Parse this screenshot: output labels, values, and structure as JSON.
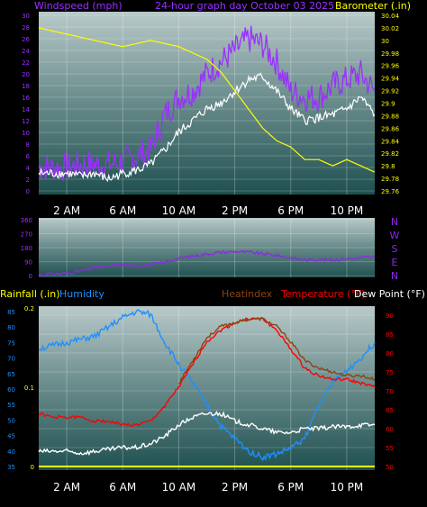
{
  "colors": {
    "background": "#000000",
    "wind_avg": "#9b30ff",
    "wind_gust": "#ffffff",
    "barometer": "#ffff00",
    "direction": "#8a2be2",
    "rain": "#ffff00",
    "humidity": "#1e90ff",
    "heatindex": "#8b4513",
    "temperature": "#ff0000",
    "dewpoint": "#ffffff"
  },
  "chart_data": [
    {
      "type": "line",
      "title_left": "Windspeed (mph)",
      "title_center": "24-hour graph day   October 03 2025",
      "title_right": "Barometer (.in)",
      "x_ticks": [
        "2 AM",
        "6 AM",
        "10 AM",
        "2 PM",
        "6 PM",
        "10 PM"
      ],
      "y_left": {
        "range": [
          0,
          30
        ],
        "ticks": [
          "0",
          "2",
          "4",
          "6",
          "8",
          "10",
          "12",
          "14",
          "16",
          "18",
          "20",
          "22",
          "24",
          "26",
          "28",
          "30"
        ]
      },
      "y_right": {
        "range": [
          29.76,
          30.04
        ],
        "ticks": [
          "29.76",
          "29.78",
          "29.8",
          "29.82",
          "29.84",
          "29.86",
          "29.88",
          "29.9",
          "29.92",
          "29.94",
          "29.96",
          "29.98",
          "30",
          "30.02",
          "30.04"
        ]
      },
      "series": [
        {
          "key": "wind_avg",
          "axis": "left",
          "x": [
            0,
            1,
            2,
            3,
            4,
            5,
            6,
            7,
            8,
            9,
            10,
            11,
            12,
            13,
            14,
            15,
            16,
            17,
            18,
            19,
            20,
            21,
            22,
            23,
            24
          ],
          "y": [
            4,
            4,
            4,
            4.5,
            4.5,
            4.5,
            5,
            6,
            7,
            13,
            16,
            17,
            20,
            22,
            24,
            26,
            25,
            22,
            17,
            16,
            16,
            18,
            19,
            20,
            17
          ]
        },
        {
          "key": "wind_gust",
          "axis": "left",
          "x": [
            0,
            1,
            2,
            3,
            4,
            5,
            6,
            7,
            8,
            9,
            10,
            11,
            12,
            13,
            14,
            15,
            16,
            17,
            18,
            19,
            20,
            21,
            22,
            23,
            24
          ],
          "y": [
            3,
            3,
            3,
            2.5,
            3,
            2,
            3,
            3.5,
            4.5,
            7,
            10,
            12,
            14,
            15,
            17,
            19,
            19.5,
            17,
            14,
            12,
            12.5,
            13,
            14,
            16,
            13
          ]
        },
        {
          "key": "barometer",
          "axis": "right",
          "x": [
            0,
            2,
            4,
            6,
            8,
            10,
            11,
            12,
            13,
            14,
            15,
            16,
            17,
            18,
            19,
            20,
            21,
            22,
            23,
            24
          ],
          "y": [
            30.02,
            30.01,
            30.0,
            29.99,
            30.0,
            29.99,
            29.98,
            29.97,
            29.95,
            29.92,
            29.89,
            29.86,
            29.84,
            29.83,
            29.81,
            29.81,
            29.8,
            29.81,
            29.8,
            29.79
          ]
        }
      ]
    },
    {
      "type": "line",
      "y_ticks": [
        "0",
        "90",
        "180",
        "270",
        "360"
      ],
      "y_range": [
        0,
        360
      ],
      "right_labels": [
        "N",
        "W",
        "S",
        "E",
        "N"
      ],
      "series": [
        {
          "key": "direction",
          "x": [
            0,
            1,
            2,
            3,
            4,
            5,
            6,
            7,
            8,
            9,
            10,
            11,
            12,
            13,
            14,
            15,
            16,
            17,
            18,
            19,
            20,
            21,
            22,
            23,
            24
          ],
          "y": [
            5,
            10,
            15,
            30,
            50,
            60,
            75,
            60,
            70,
            85,
            110,
            125,
            140,
            150,
            155,
            150,
            140,
            130,
            115,
            100,
            105,
            100,
            110,
            115,
            120
          ]
        }
      ]
    },
    {
      "type": "line",
      "label_rain": "Rainfall (.in)",
      "label_humidity": "Humidity",
      "label_heatindex": "Heatindex",
      "label_temperature": "Temperature (°F)",
      "label_dewpoint": "Dew Point (°F)",
      "x_ticks": [
        "2 AM",
        "6 AM",
        "10 AM",
        "2 PM",
        "6 PM",
        "10 PM"
      ],
      "y_rain": {
        "range": [
          0,
          0.2
        ],
        "ticks": [
          "0",
          "0.1",
          "0.2"
        ]
      },
      "y_humidity": {
        "range": [
          35,
          85
        ],
        "ticks": [
          "35",
          "40",
          "45",
          "50",
          "55",
          "60",
          "65",
          "70",
          "75",
          "80",
          "85"
        ]
      },
      "y_temp": {
        "range": [
          50,
          90
        ],
        "ticks": [
          "50",
          "55",
          "60",
          "65",
          "70",
          "75",
          "80",
          "85",
          "90"
        ]
      },
      "series": [
        {
          "key": "humidity",
          "axis": "humidity",
          "x": [
            0,
            1,
            2,
            3,
            4,
            5,
            6,
            7,
            8,
            9,
            10,
            11,
            12,
            13,
            14,
            15,
            16,
            17,
            18,
            19,
            20,
            21,
            22,
            23,
            24
          ],
          "y": [
            73,
            74,
            75,
            76,
            77,
            80,
            83,
            85,
            84,
            75,
            68,
            62,
            55,
            48,
            44,
            40,
            38,
            39,
            41,
            44,
            55,
            62,
            66,
            70,
            75
          ]
        },
        {
          "key": "temperature",
          "axis": "temp",
          "x": [
            0,
            1,
            2,
            3,
            4,
            5,
            6,
            7,
            8,
            9,
            10,
            11,
            12,
            13,
            14,
            15,
            16,
            17,
            18,
            19,
            20,
            21,
            22,
            23,
            24
          ],
          "y": [
            64,
            63,
            63,
            63,
            62,
            62,
            61,
            61,
            62,
            66,
            71,
            77,
            83,
            86,
            88,
            89,
            89,
            86,
            81,
            76,
            74,
            73,
            73,
            72,
            71
          ]
        },
        {
          "key": "heatindex",
          "axis": "temp",
          "x": [
            10,
            11,
            12,
            13,
            14,
            15,
            16,
            17,
            18,
            19,
            20,
            21,
            22,
            23,
            24
          ],
          "y": [
            72,
            78,
            84,
            87,
            88,
            89,
            89,
            87,
            83,
            78,
            76,
            75,
            74,
            74,
            73
          ]
        },
        {
          "key": "dewpoint",
          "axis": "temp",
          "x": [
            0,
            1,
            2,
            3,
            4,
            5,
            6,
            7,
            8,
            9,
            10,
            11,
            12,
            13,
            14,
            15,
            16,
            17,
            18,
            19,
            20,
            21,
            22,
            23,
            24
          ],
          "y": [
            54,
            54,
            54,
            53.5,
            54,
            54.5,
            55,
            55,
            56,
            58,
            61,
            63,
            64,
            64,
            62,
            61,
            60,
            59,
            59,
            60,
            60,
            60.5,
            60.5,
            61,
            61
          ]
        },
        {
          "key": "rain",
          "axis": "rain",
          "x": [
            0,
            24
          ],
          "y": [
            0,
            0
          ]
        }
      ]
    }
  ]
}
